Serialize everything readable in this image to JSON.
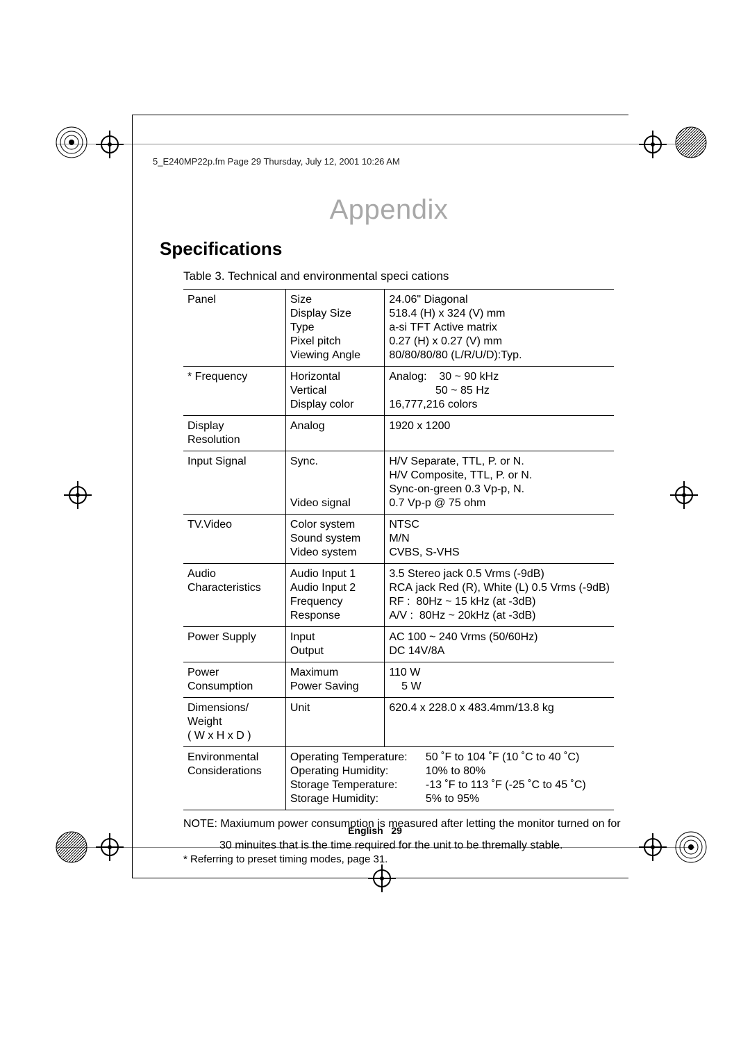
{
  "header": "5_E240MP22p.fm  Page 29  Thursday, July 12, 2001  10:26 AM",
  "titleCenter": "Appendix",
  "sectionTitle": "Speciﬁcations",
  "tableCaption": "Table 3.  Technical and environmental speci cations",
  "colors": {
    "titleGray": "#a8a8a8",
    "text": "#000000",
    "background": "#ffffff",
    "border": "#000000"
  },
  "rows": [
    {
      "c1": "Panel",
      "c2": "Size\nDisplay Size\nType\nPixel pitch\nViewing Angle",
      "c3": "24.06\" Diagonal\n518.4 (H) x 324 (V) mm\na-si TFT Active matrix\n0.27 (H) x 0.27 (V) mm\n80/80/80/80 (L/R/U/D):Typ."
    },
    {
      "c1": "* Frequency",
      "c2": "Horizontal\nVertical\nDisplay color",
      "c3": "Analog:    30 ~ 90 kHz\n               50 ~ 85 Hz\n16,777,216 colors"
    },
    {
      "c1": "Display\nResolution",
      "c2": "Analog",
      "c3": "1920 x 1200"
    },
    {
      "c1": "Input Signal",
      "c2": "Sync.\n\n\nVideo signal",
      "c3": "H/V Separate, TTL, P. or N.\nH/V Composite, TTL, P. or N.\nSync-on-green 0.3 Vp-p, N.\n0.7 Vp-p @ 75 ohm"
    },
    {
      "c1": "TV.Video",
      "c2": "Color system\nSound system\nVideo system",
      "c3": "NTSC\nM/N\nCVBS, S-VHS"
    },
    {
      "c1": "Audio\nCharacteristics",
      "c2": "Audio Input 1\nAudio Input 2\nFrequency\nResponse",
      "c3": "3.5 Stereo jack 0.5 Vrms (-9dB)\nRCA jack Red (R), White (L) 0.5 Vrms (-9dB)\nRF :  80Hz ~ 15 kHz (at -3dB)\nA/V :  80Hz ~ 20kHz (at -3dB)"
    },
    {
      "c1": "Power Supply",
      "c2": "Input\nOutput",
      "c3": "AC 100 ~ 240 Vrms (50/60Hz)\nDC 14V/8A"
    },
    {
      "c1": "Power\nConsumption",
      "c2": "Maximum\nPower Saving",
      "c3": "110 W\n    5 W"
    },
    {
      "c1": "Dimensions/\nWeight\n( W x H x D )",
      "c2": "Unit",
      "c3": "620.4 x 228.0 x 483.4mm/13.8 kg"
    }
  ],
  "envRow": {
    "c1": "Environmental\nConsiderations",
    "lines": [
      {
        "label": "Operating Temperature:",
        "value": "50 ˚F to 104 ˚F (10 ˚C to 40 ˚C)"
      },
      {
        "label": "Operating Humidity:",
        "value": "10% to 80%"
      },
      {
        "label": "Storage Temperature:",
        "value": "-13 ˚F to 113 ˚F (-25 ˚C to 45 ˚C)"
      },
      {
        "label": "Storage Humidity:",
        "value": "5% to 95%"
      }
    ]
  },
  "note1": "NOTE: Maxiumum power consumption is measured after letting the monitor turned on for",
  "note2": "30 minuites that is the time required for the unit to be thremally stable.",
  "footref": "* Referring to preset timing modes, page 31.",
  "footerLang": "English",
  "footerPage": "29"
}
